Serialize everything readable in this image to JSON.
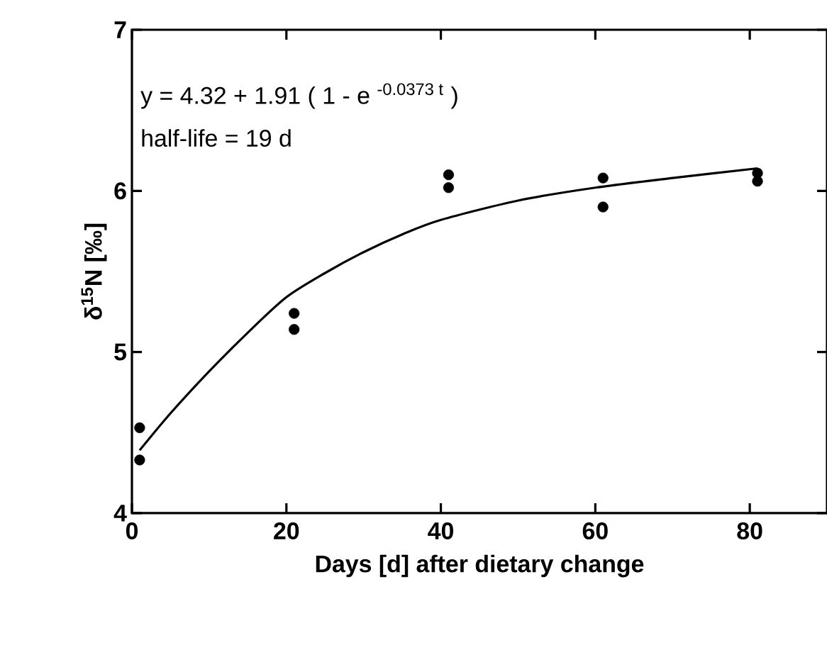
{
  "chart_data": {
    "type": "scatter",
    "xlabel": "Days [d] after dietary change",
    "ylabel": "δ$^{15}$N [‰]",
    "annotations": [
      "y = 4.32 + 1.91 ( 1 - e $^{-0.0373 t}$ )",
      "half-life = 19 d"
    ],
    "xlim": [
      0,
      90
    ],
    "ylim": [
      4,
      7
    ],
    "xticks": [
      0,
      20,
      40,
      60,
      80
    ],
    "yticks": [
      4,
      5,
      6,
      7
    ],
    "series": [
      {
        "color": "#000000",
        "marker": "circle",
        "x": [
          1,
          1,
          21,
          21,
          41,
          41,
          61,
          61,
          81,
          81
        ],
        "values": [
          4.53,
          4.33,
          5.24,
          5.14,
          6.1,
          6.02,
          6.08,
          5.9,
          6.11,
          6.06
        ]
      },
      {
        "type": "line",
        "color": "#000000",
        "marker": "none",
        "x": [
          1,
          5,
          10,
          15,
          20,
          25,
          30,
          35,
          40,
          50,
          60,
          70,
          81
        ],
        "values": [
          4.39,
          4.62,
          4.88,
          5.12,
          5.34,
          5.49,
          5.62,
          5.73,
          5.82,
          5.94,
          6.02,
          6.08,
          6.14
        ]
      }
    ]
  }
}
